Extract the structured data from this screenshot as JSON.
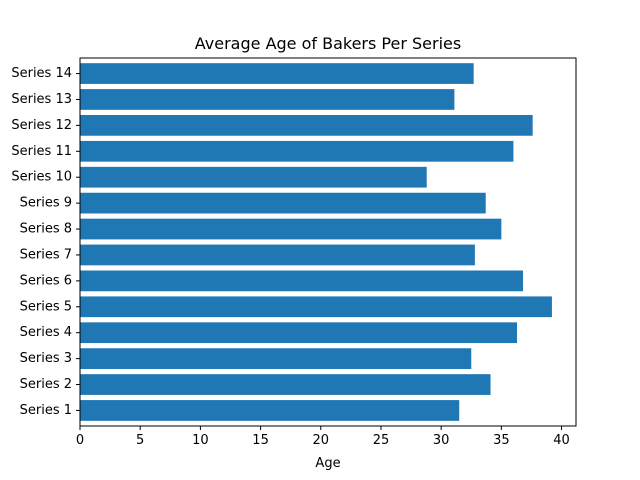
{
  "chart_data": {
    "type": "bar",
    "orientation": "horizontal",
    "title": "Average Age of Bakers Per Series",
    "xlabel": "Age",
    "ylabel": "",
    "categories": [
      "Series 1",
      "Series 2",
      "Series 3",
      "Series 4",
      "Series 5",
      "Series 6",
      "Series 7",
      "Series 8",
      "Series 9",
      "Series 10",
      "Series 11",
      "Series 12",
      "Series 13",
      "Series 14"
    ],
    "values": [
      31.5,
      34.1,
      32.5,
      36.3,
      39.2,
      36.8,
      32.8,
      35.0,
      33.7,
      28.8,
      36.0,
      37.6,
      31.1,
      32.7
    ],
    "xlim": [
      0,
      41.2
    ],
    "xticks": [
      0,
      5,
      10,
      15,
      20,
      25,
      30,
      35,
      40
    ],
    "bar_color": "#1f77b4",
    "grid": false,
    "legend": "none"
  }
}
